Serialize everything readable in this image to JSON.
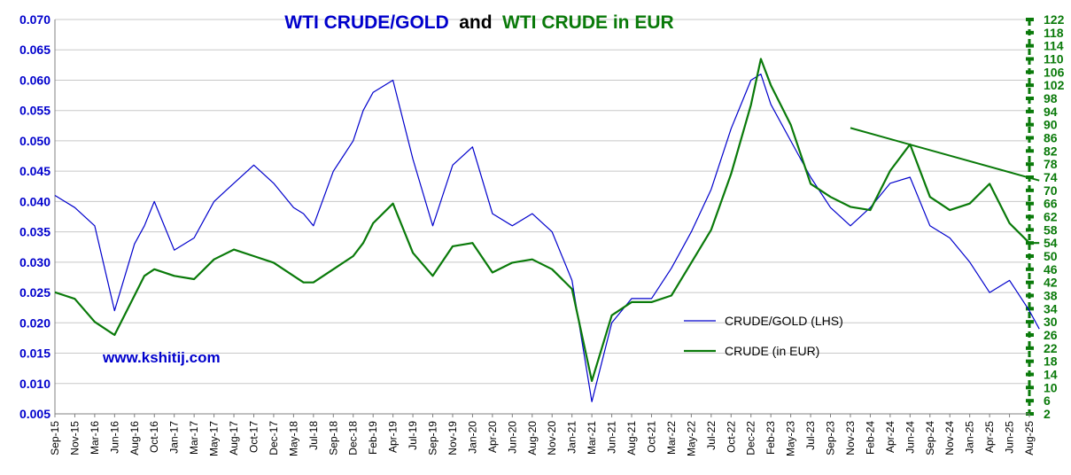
{
  "chart_data": {
    "type": "line",
    "title_parts": [
      "WTI CRUDE/GOLD",
      "and",
      "WTI CRUDE in EUR"
    ],
    "watermark": "www.kshitij.com",
    "x_tick_labels": [
      "Sep-15",
      "Nov-15",
      "Mar-16",
      "Jun-16",
      "Aug-16",
      "Oct-16",
      "Jan-17",
      "Mar-17",
      "May-17",
      "Aug-17",
      "Oct-17",
      "Dec-17",
      "May-18",
      "Jul-18",
      "Sep-18",
      "Dec-18",
      "Feb-19",
      "Apr-19",
      "Jul-19",
      "Sep-19",
      "Nov-19",
      "Jan-20",
      "Apr-20",
      "Jun-20",
      "Aug-20",
      "Nov-20",
      "Jan-21",
      "Mar-21",
      "Jun-21",
      "Aug-21",
      "Oct-21",
      "Mar-22",
      "May-22",
      "Jul-22",
      "Oct-22",
      "Dec-22",
      "Feb-23",
      "May-23",
      "Jul-23",
      "Sep-23",
      "Nov-23",
      "Feb-24",
      "Apr-24",
      "Jun-24",
      "Sep-24",
      "Nov-24",
      "Jan-25",
      "Apr-25",
      "Jun-25",
      "Aug-25"
    ],
    "y_left": {
      "tick_labels": [
        "0.005",
        "0.010",
        "0.015",
        "0.020",
        "0.025",
        "0.030",
        "0.035",
        "0.040",
        "0.045",
        "0.050",
        "0.055",
        "0.060",
        "0.065",
        "0.070"
      ],
      "ylim": [
        0.005,
        0.07
      ]
    },
    "y_right": {
      "tick_labels": [
        "2",
        "6",
        "10",
        "14",
        "18",
        "22",
        "26",
        "30",
        "34",
        "38",
        "42",
        "46",
        "50",
        "54",
        "58",
        "62",
        "66",
        "70",
        "74",
        "78",
        "82",
        "86",
        "90",
        "94",
        "98",
        "102",
        "106",
        "110",
        "114",
        "118",
        "122"
      ],
      "ylim": [
        2,
        122
      ]
    },
    "legend": {
      "position": "center-right",
      "entries": [
        "CRUDE/GOLD (LHS)",
        "CRUDE (in EUR)"
      ]
    },
    "grid": true,
    "series": [
      {
        "name": "CRUDE/GOLD (LHS)",
        "axis": "left",
        "color": "#0000cc",
        "x": [
          0,
          0.5,
          1,
          2,
          3,
          4,
          4.5,
          5,
          6,
          7,
          8,
          9,
          10,
          11,
          12,
          12.5,
          13,
          14,
          15,
          15.5,
          16,
          17,
          18,
          19,
          20,
          21,
          22,
          23,
          24,
          25,
          26,
          27,
          28,
          29,
          30,
          31,
          32,
          33,
          34,
          35,
          35.5,
          36,
          37,
          38,
          39,
          40,
          41,
          42,
          43,
          44,
          45,
          46,
          47,
          48,
          49,
          49.5
        ],
        "values": [
          0.041,
          0.04,
          0.039,
          0.036,
          0.022,
          0.033,
          0.036,
          0.04,
          0.032,
          0.034,
          0.04,
          0.043,
          0.046,
          0.043,
          0.039,
          0.038,
          0.036,
          0.045,
          0.05,
          0.055,
          0.058,
          0.06,
          0.047,
          0.036,
          0.046,
          0.049,
          0.038,
          0.036,
          0.038,
          0.035,
          0.027,
          0.007,
          0.02,
          0.024,
          0.024,
          0.029,
          0.035,
          0.042,
          0.052,
          0.06,
          0.061,
          0.056,
          0.05,
          0.044,
          0.039,
          0.036,
          0.039,
          0.043,
          0.044,
          0.036,
          0.034,
          0.03,
          0.025,
          0.027,
          0.022,
          0.019
        ]
      },
      {
        "name": "CRUDE (in EUR)",
        "axis": "right",
        "color": "#0a7a0a",
        "x": [
          0,
          0.5,
          1,
          2,
          3,
          4,
          4.5,
          5,
          6,
          7,
          8,
          9,
          10,
          11,
          12,
          12.5,
          13,
          14,
          15,
          15.5,
          16,
          17,
          18,
          19,
          20,
          21,
          22,
          23,
          24,
          25,
          26,
          27,
          28,
          29,
          30,
          31,
          32,
          33,
          34,
          35,
          35.5,
          36,
          37,
          38,
          39,
          40,
          41,
          42,
          43,
          44,
          45,
          46,
          47,
          48,
          49,
          49.5
        ],
        "values": [
          39,
          38,
          37,
          30,
          26,
          38,
          44,
          46,
          44,
          43,
          49,
          52,
          50,
          48,
          44,
          42,
          42,
          46,
          50,
          54,
          60,
          66,
          51,
          44,
          53,
          54,
          45,
          48,
          49,
          46,
          40,
          12,
          32,
          36,
          36,
          38,
          48,
          58,
          75,
          96,
          110,
          102,
          90,
          72,
          68,
          65,
          64,
          76,
          84,
          68,
          64,
          66,
          72,
          60,
          54,
          54
        ]
      },
      {
        "name": "Trendline",
        "axis": "right",
        "color": "#0a7a0a",
        "x": [
          40,
          49.5
        ],
        "values": [
          89,
          73
        ]
      }
    ]
  }
}
